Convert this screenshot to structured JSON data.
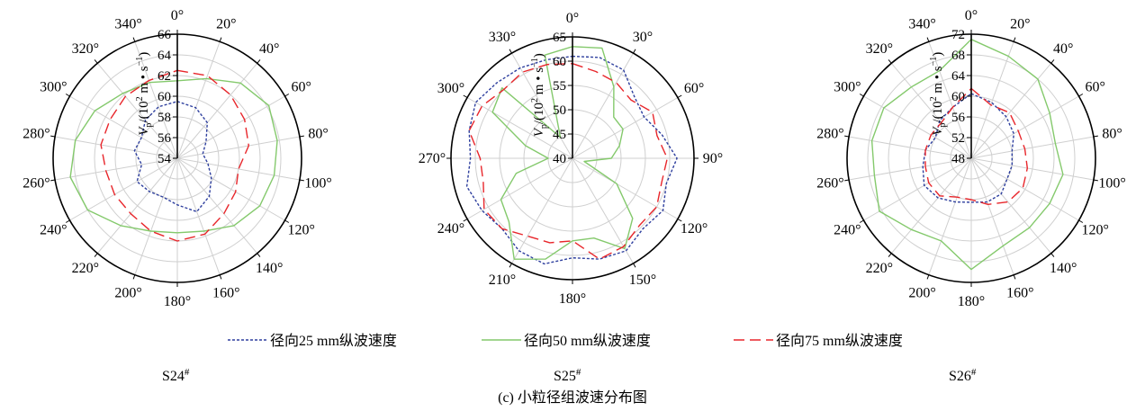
{
  "figure": {
    "caption": "(c)  小粒径组波速分布图"
  },
  "legend": [
    {
      "label": "径向25 mm纵波速度",
      "color": "#2e3f9e",
      "dash": "3,2"
    },
    {
      "label": "径向50 mm纵波速度",
      "color": "#84c96c",
      "dash": ""
    },
    {
      "label": "径向75 mm纵波速度",
      "color": "#e8262b",
      "dash": "12,6"
    }
  ],
  "chart_data": [
    {
      "type": "polar-line",
      "panel_label": "S24",
      "panel_sup": "#",
      "ylabel": "V_p/(10^2 m·s^-1)",
      "r_range": [
        54,
        66
      ],
      "r_ticks": [
        54,
        56,
        58,
        60,
        62,
        64,
        66
      ],
      "angle_ticks": [
        0,
        20,
        40,
        60,
        80,
        100,
        120,
        140,
        160,
        180,
        200,
        220,
        240,
        260,
        280,
        300,
        320,
        340
      ],
      "angles": [
        0,
        20,
        40,
        60,
        80,
        100,
        120,
        140,
        160,
        180,
        200,
        220,
        240,
        260,
        280,
        300,
        320,
        340
      ],
      "series": [
        {
          "name": "径向25 mm纵波速度",
          "values": [
            59.5,
            59.2,
            58.5,
            57.2,
            56.5,
            57.0,
            57.8,
            58.8,
            59.5,
            58.5,
            58.0,
            58.2,
            58.5,
            57.5,
            58.2,
            58.0,
            58.8,
            59.3
          ]
        },
        {
          "name": "径向50 mm纵波速度",
          "values": [
            61.5,
            62.2,
            63.5,
            64.2,
            63.8,
            63.5,
            63.2,
            62.5,
            61.5,
            61.2,
            61.5,
            62.5,
            64.0,
            64.5,
            64.0,
            63.2,
            62.2,
            61.8
          ]
        },
        {
          "name": "径向75 mm纵波速度",
          "values": [
            62.5,
            62.5,
            62.0,
            61.5,
            61.0,
            60.0,
            60.5,
            61.0,
            61.8,
            62.0,
            61.5,
            61.0,
            61.0,
            61.0,
            61.5,
            61.5,
            61.8,
            62.0
          ]
        }
      ]
    },
    {
      "type": "polar-line",
      "panel_label": "S25",
      "panel_sup": "#",
      "ylabel": "V_p/(10^2 m·s^-1)",
      "r_range": [
        40,
        65
      ],
      "r_ticks": [
        40,
        45,
        50,
        55,
        60,
        65
      ],
      "angle_ticks": [
        0,
        30,
        60,
        90,
        120,
        150,
        180,
        210,
        240,
        270,
        300,
        330
      ],
      "angles": [
        0,
        15,
        30,
        45,
        60,
        75,
        90,
        105,
        120,
        135,
        150,
        165,
        180,
        195,
        210,
        225,
        240,
        255,
        270,
        285,
        300,
        315,
        330,
        345
      ],
      "series": [
        {
          "name": "径向25 mm纵波速度",
          "values": [
            61.0,
            61.5,
            61.0,
            58.0,
            57.0,
            59.0,
            61.5,
            60.0,
            61.5,
            60.5,
            62.0,
            61.5,
            60.5,
            62.5,
            62.0,
            60.5,
            61.5,
            62.5,
            61.0,
            62.0,
            63.0,
            62.0,
            61.5,
            61.0
          ]
        },
        {
          "name": "径向50 mm纵波速度",
          "values": [
            63.0,
            63.5,
            57.0,
            52.0,
            52.0,
            50.0,
            48.0,
            42.5,
            50.5,
            57.5,
            61.5,
            57.0,
            57.0,
            61.5,
            64.0,
            58.5,
            57.0,
            52.0,
            45.0,
            50.0,
            59.0,
            60.5,
            45.0,
            62.0
          ]
        },
        {
          "name": "径向75 mm纵波速度",
          "values": [
            59.5,
            58.5,
            58.0,
            57.0,
            59.0,
            58.0,
            59.5,
            59.0,
            60.0,
            59.5,
            61.0,
            61.5,
            57.0,
            58.0,
            58.5,
            60.5,
            61.0,
            59.0,
            59.0,
            62.0,
            61.5,
            60.0,
            60.5,
            60.0
          ]
        }
      ]
    },
    {
      "type": "polar-line",
      "panel_label": "S26",
      "panel_sup": "#",
      "ylabel": "V_p/(10^2 m·s^-1)",
      "r_range": [
        48,
        72
      ],
      "r_ticks": [
        48,
        52,
        56,
        60,
        64,
        68,
        72
      ],
      "angle_ticks": [
        0,
        20,
        40,
        60,
        80,
        100,
        120,
        140,
        160,
        180,
        200,
        220,
        240,
        260,
        280,
        300,
        320,
        340
      ],
      "angles": [
        0,
        20,
        40,
        60,
        80,
        100,
        120,
        140,
        160,
        180,
        200,
        220,
        240,
        260,
        280,
        300,
        320,
        340
      ],
      "series": [
        {
          "name": "径向25 mm纵波速度",
          "values": [
            60.5,
            59.5,
            58.5,
            57.5,
            56.0,
            56.0,
            56.0,
            57.0,
            57.0,
            56.5,
            57.0,
            58.0,
            58.5,
            57.5,
            57.0,
            56.0,
            57.5,
            58.5
          ]
        },
        {
          "name": "径向50 mm纵波速度",
          "values": [
            71.0,
            69.0,
            68.0,
            65.5,
            64.5,
            66.0,
            65.5,
            65.5,
            66.0,
            69.5,
            65.0,
            66.0,
            68.5,
            67.0,
            67.5,
            67.5,
            66.0,
            66.0
          ]
        },
        {
          "name": "径向75 mm纵波速度",
          "values": [
            61.5,
            59.0,
            59.5,
            58.5,
            58.5,
            59.0,
            59.5,
            59.0,
            57.5,
            56.0,
            56.0,
            57.5,
            57.5,
            57.0,
            57.0,
            57.0,
            57.0,
            58.5
          ]
        }
      ]
    }
  ]
}
